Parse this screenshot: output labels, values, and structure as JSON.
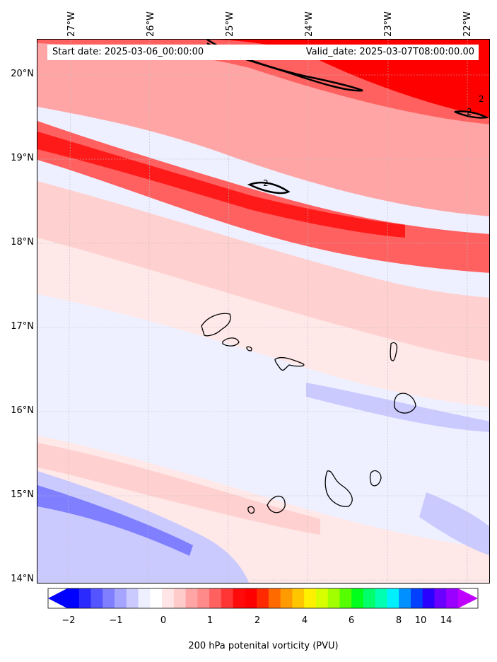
{
  "header": {
    "start_date": "Start date: 2025-03-06_00:00:00",
    "valid_date": "Valid_date: 2025-03-07T08:00:00.00"
  },
  "lat_labels": [
    "20°N",
    "19°N",
    "18°N",
    "17°N",
    "16°N",
    "15°N",
    "14°N"
  ],
  "lon_labels": [
    "27°W",
    "26°W",
    "25°W",
    "24°W",
    "23°W",
    "22°W"
  ],
  "contour_labels": [
    "2",
    "2",
    "2"
  ],
  "colorbar": {
    "label": "200 hPa potenital vorticity (PVU)",
    "ticks": [
      "−2",
      "−1",
      "0",
      "1",
      "2",
      "4",
      "6",
      "8",
      "10",
      "14"
    ],
    "colors": [
      "#0000ff",
      "#2a2aff",
      "#5555ff",
      "#7f7fff",
      "#a5a5ff",
      "#cacaff",
      "#eef0ff",
      "#ffffff",
      "#ffe5e5",
      "#ffcaca",
      "#ffa5a5",
      "#ff8a8a",
      "#ff6060",
      "#ff3535",
      "#ff0a0a",
      "#ff0000",
      "#ff2a00",
      "#ff6a00",
      "#ff9a00",
      "#ffc600",
      "#fff000",
      "#d8ff00",
      "#a2ff00",
      "#55ff00",
      "#00ff1a",
      "#00ff6a",
      "#00ffb0",
      "#00f0ff",
      "#0090ff",
      "#0040ff",
      "#2a00ff",
      "#6a00ff",
      "#9a00ff"
    ],
    "arrow_low": "#0000ff",
    "arrow_high": "#c000ff"
  },
  "legend_colors": {
    "strong_red": "#ff0000",
    "medium_red": "#ff6060",
    "light_red": "#ffa5a5",
    "pale_red": "#ffd0d0",
    "faint_red": "#ffe8e8",
    "pale_blue": "#eef0ff",
    "light_blue": "#cacaff",
    "medium_blue": "#9a9aff",
    "strong_blue": "#5555ff"
  }
}
